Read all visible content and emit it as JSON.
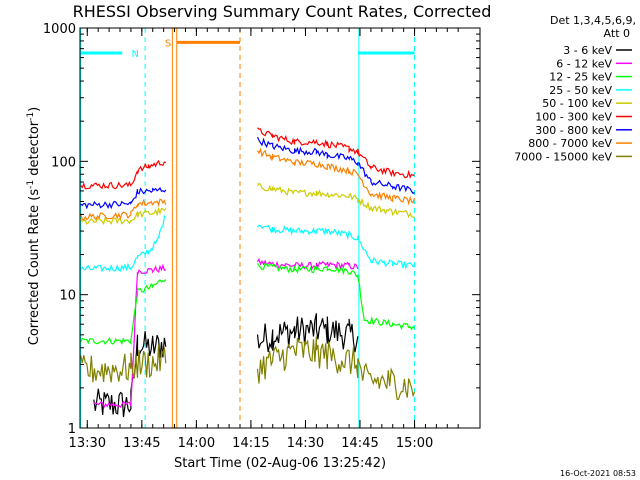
{
  "chart_data": {
    "type": "line",
    "title": "RHESSI Observing Summary Count Rates, Corrected",
    "xlabel": "Start Time (02-Aug-06 13:25:42)",
    "ylabel_main": "Corrected Count Rate (s",
    "ylabel_sup1": "-1",
    "ylabel_mid": " detector",
    "ylabel_sup2": "-1",
    "ylabel_end": ")",
    "yscale": "log",
    "ylim": [
      1,
      1000
    ],
    "y_ticks": [
      {
        "value": 1,
        "label": "1"
      },
      {
        "value": 10,
        "label": "10"
      },
      {
        "value": 100,
        "label": "100"
      },
      {
        "value": 1000,
        "label": "1000"
      }
    ],
    "xlim_minutes": [
      13.4666,
      15.3
    ],
    "x_ticks": [
      {
        "value": 13.5,
        "label": "13:30"
      },
      {
        "value": 13.75,
        "label": "13:45"
      },
      {
        "value": 14.0,
        "label": "14:00"
      },
      {
        "value": 14.25,
        "label": "14:15"
      },
      {
        "value": 14.5,
        "label": "14:30"
      },
      {
        "value": 14.75,
        "label": "14:45"
      },
      {
        "value": 15.0,
        "label": "15:00"
      }
    ],
    "legend": {
      "position": "top-right",
      "header": [
        "Det 1,3,4,5,6,9,",
        "Att 0"
      ]
    },
    "series": [
      {
        "name": "3 - 6 keV",
        "color": "#000000",
        "x": [
          13.53,
          13.7,
          13.73,
          13.8,
          13.86,
          14.28,
          14.35,
          14.45,
          14.55,
          14.6,
          14.7,
          14.74
        ],
        "y": [
          1.5,
          1.5,
          4.2,
          4.0,
          4.3,
          4.5,
          5.0,
          5.3,
          5.5,
          5.4,
          5.0,
          4.8
        ]
      },
      {
        "name": "6 - 12 keV",
        "color": "#ff00ff",
        "x": [
          13.53,
          13.7,
          13.73,
          13.8,
          13.86,
          14.28,
          14.35,
          14.45,
          14.55,
          14.6,
          14.7,
          14.74
        ],
        "y": [
          1.5,
          1.5,
          15.0,
          15.3,
          15.8,
          17.5,
          17.0,
          16.5,
          16.5,
          16.8,
          16.5,
          16.0
        ]
      },
      {
        "name": "12 - 25 keV",
        "color": "#00ff00",
        "x": [
          13.47,
          13.7,
          13.73,
          13.8,
          13.86,
          14.28,
          14.35,
          14.45,
          14.55,
          14.6,
          14.7,
          14.74,
          14.77,
          14.9,
          15.0
        ],
        "y": [
          4.5,
          4.5,
          10.5,
          11.5,
          13.5,
          16.5,
          16.0,
          15.5,
          15.5,
          16.0,
          15.0,
          14.0,
          6.5,
          6.0,
          5.7
        ]
      },
      {
        "name": "25 - 50 keV",
        "color": "#00ffff",
        "x": [
          13.47,
          13.7,
          13.73,
          13.78,
          13.82,
          13.86,
          14.28,
          14.35,
          14.45,
          14.55,
          14.6,
          14.7,
          14.74,
          14.8,
          14.9,
          15.0
        ],
        "y": [
          15.5,
          16.0,
          19.0,
          21.0,
          25.0,
          40.0,
          34.0,
          31.0,
          30.0,
          30.0,
          30.0,
          28.0,
          26.5,
          18.0,
          17.0,
          16.5
        ]
      },
      {
        "name": "50 - 100 keV",
        "color": "#cccc00",
        "x": [
          13.47,
          13.7,
          13.73,
          13.8,
          13.86,
          14.28,
          14.35,
          14.45,
          14.55,
          14.6,
          14.7,
          14.74,
          14.8,
          14.9,
          15.0
        ],
        "y": [
          35.0,
          36.0,
          40.0,
          41.0,
          43.0,
          65.0,
          62.0,
          58.0,
          58.0,
          57.0,
          55.0,
          52.0,
          45.0,
          42.0,
          40.0
        ]
      },
      {
        "name": "100 - 300 keV",
        "color": "#ff0000",
        "x": [
          13.47,
          13.7,
          13.73,
          13.78,
          13.86,
          14.28,
          14.35,
          14.45,
          14.55,
          14.6,
          14.7,
          14.74,
          14.8,
          14.9,
          15.0
        ],
        "y": [
          66.0,
          66.0,
          85.0,
          92.0,
          100.0,
          170.0,
          155.0,
          140.0,
          140.0,
          135.0,
          125.0,
          118.0,
          90.0,
          82.0,
          78.0
        ]
      },
      {
        "name": "300 - 800 keV",
        "color": "#0000ff",
        "x": [
          13.47,
          13.7,
          13.73,
          13.8,
          13.86,
          14.28,
          14.35,
          14.45,
          14.55,
          14.6,
          14.7,
          14.74,
          14.8,
          14.9,
          15.0
        ],
        "y": [
          47.0,
          48.0,
          59.0,
          60.0,
          62.0,
          145.0,
          130.0,
          120.0,
          118.0,
          112.0,
          105.0,
          98.0,
          70.0,
          65.0,
          60.0
        ]
      },
      {
        "name": "800 - 7000 keV",
        "color": "#ff8000",
        "x": [
          13.47,
          13.7,
          13.73,
          13.8,
          13.86,
          14.28,
          14.35,
          14.45,
          14.55,
          14.6,
          14.7,
          14.74,
          14.8,
          14.9,
          15.0
        ],
        "y": [
          38.0,
          40.0,
          48.0,
          49.0,
          50.0,
          120.0,
          108.0,
          98.0,
          96.0,
          92.0,
          85.0,
          80.0,
          57.0,
          53.0,
          50.0
        ]
      },
      {
        "name": "7000 - 15000 keV",
        "color": "#808000",
        "x": [
          13.47,
          13.7,
          13.73,
          13.8,
          13.86,
          14.28,
          14.35,
          14.45,
          14.55,
          14.6,
          14.7,
          14.74,
          14.77,
          14.9,
          15.0
        ],
        "y": [
          2.7,
          2.8,
          3.0,
          3.1,
          3.3,
          2.8,
          3.2,
          3.8,
          3.7,
          3.5,
          3.2,
          3.0,
          2.3,
          2.2,
          2.0
        ]
      }
    ],
    "flag_segments": [
      {
        "label": "N",
        "color": "#00ffff",
        "y": 650,
        "x_start": 13.47,
        "x_end": 13.66,
        "label_x": 13.72
      },
      {
        "label": "",
        "color": "#00ffff",
        "y": 650,
        "x_start": 14.74,
        "x_end": 15.0,
        "label_x": null
      },
      {
        "label": "S",
        "color": "#ff8000",
        "y": 780,
        "x_start": 13.91,
        "x_end": 14.2,
        "label_x": 13.87
      }
    ],
    "vertical_markers": [
      {
        "x": 13.47,
        "color": "#00ffff",
        "style": "solid"
      },
      {
        "x": 13.765,
        "color": "#00ffff",
        "style": "dashed"
      },
      {
        "x": 13.89,
        "color": "#ff8000",
        "style": "solid"
      },
      {
        "x": 13.91,
        "color": "#ff8000",
        "style": "solid"
      },
      {
        "x": 14.2,
        "color": "#ff8000",
        "style": "dashed"
      },
      {
        "x": 14.745,
        "color": "#00ffff",
        "style": "solid"
      },
      {
        "x": 15.0,
        "color": "#00ffff",
        "style": "dashed"
      }
    ],
    "timestamp": "16-Oct-2021 08:53"
  }
}
